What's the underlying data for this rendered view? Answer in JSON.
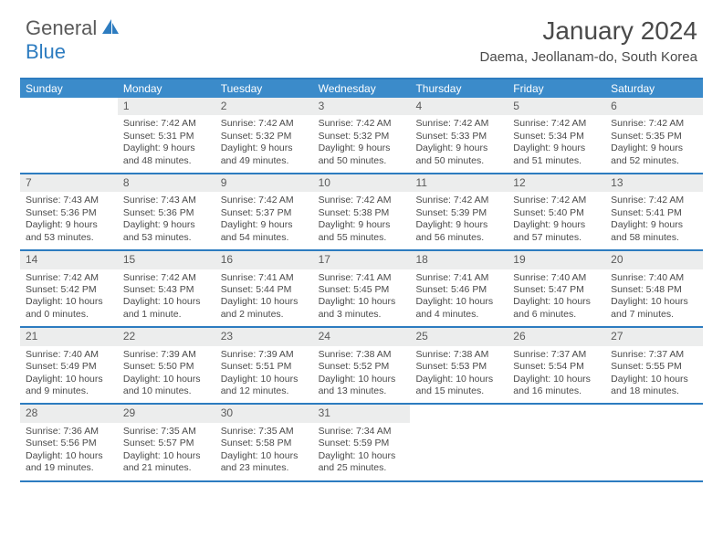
{
  "brand": {
    "part1": "General",
    "part2": "Blue"
  },
  "title": "January 2024",
  "location": "Daema, Jeollanam-do, South Korea",
  "colors": {
    "accent": "#2d7cc0",
    "header_bg": "#3b8bca",
    "header_fg": "#ffffff",
    "daynum_bg": "#eceded",
    "text": "#4a4a4a",
    "background": "#ffffff"
  },
  "daysOfWeek": [
    "Sunday",
    "Monday",
    "Tuesday",
    "Wednesday",
    "Thursday",
    "Friday",
    "Saturday"
  ],
  "labels": {
    "sunrise": "Sunrise:",
    "sunset": "Sunset:",
    "daylight": "Daylight:"
  },
  "weeks": [
    [
      null,
      {
        "n": "1",
        "sunrise": "7:42 AM",
        "sunset": "5:31 PM",
        "daylight": "9 hours and 48 minutes."
      },
      {
        "n": "2",
        "sunrise": "7:42 AM",
        "sunset": "5:32 PM",
        "daylight": "9 hours and 49 minutes."
      },
      {
        "n": "3",
        "sunrise": "7:42 AM",
        "sunset": "5:32 PM",
        "daylight": "9 hours and 50 minutes."
      },
      {
        "n": "4",
        "sunrise": "7:42 AM",
        "sunset": "5:33 PM",
        "daylight": "9 hours and 50 minutes."
      },
      {
        "n": "5",
        "sunrise": "7:42 AM",
        "sunset": "5:34 PM",
        "daylight": "9 hours and 51 minutes."
      },
      {
        "n": "6",
        "sunrise": "7:42 AM",
        "sunset": "5:35 PM",
        "daylight": "9 hours and 52 minutes."
      }
    ],
    [
      {
        "n": "7",
        "sunrise": "7:43 AM",
        "sunset": "5:36 PM",
        "daylight": "9 hours and 53 minutes."
      },
      {
        "n": "8",
        "sunrise": "7:43 AM",
        "sunset": "5:36 PM",
        "daylight": "9 hours and 53 minutes."
      },
      {
        "n": "9",
        "sunrise": "7:42 AM",
        "sunset": "5:37 PM",
        "daylight": "9 hours and 54 minutes."
      },
      {
        "n": "10",
        "sunrise": "7:42 AM",
        "sunset": "5:38 PM",
        "daylight": "9 hours and 55 minutes."
      },
      {
        "n": "11",
        "sunrise": "7:42 AM",
        "sunset": "5:39 PM",
        "daylight": "9 hours and 56 minutes."
      },
      {
        "n": "12",
        "sunrise": "7:42 AM",
        "sunset": "5:40 PM",
        "daylight": "9 hours and 57 minutes."
      },
      {
        "n": "13",
        "sunrise": "7:42 AM",
        "sunset": "5:41 PM",
        "daylight": "9 hours and 58 minutes."
      }
    ],
    [
      {
        "n": "14",
        "sunrise": "7:42 AM",
        "sunset": "5:42 PM",
        "daylight": "10 hours and 0 minutes."
      },
      {
        "n": "15",
        "sunrise": "7:42 AM",
        "sunset": "5:43 PM",
        "daylight": "10 hours and 1 minute."
      },
      {
        "n": "16",
        "sunrise": "7:41 AM",
        "sunset": "5:44 PM",
        "daylight": "10 hours and 2 minutes."
      },
      {
        "n": "17",
        "sunrise": "7:41 AM",
        "sunset": "5:45 PM",
        "daylight": "10 hours and 3 minutes."
      },
      {
        "n": "18",
        "sunrise": "7:41 AM",
        "sunset": "5:46 PM",
        "daylight": "10 hours and 4 minutes."
      },
      {
        "n": "19",
        "sunrise": "7:40 AM",
        "sunset": "5:47 PM",
        "daylight": "10 hours and 6 minutes."
      },
      {
        "n": "20",
        "sunrise": "7:40 AM",
        "sunset": "5:48 PM",
        "daylight": "10 hours and 7 minutes."
      }
    ],
    [
      {
        "n": "21",
        "sunrise": "7:40 AM",
        "sunset": "5:49 PM",
        "daylight": "10 hours and 9 minutes."
      },
      {
        "n": "22",
        "sunrise": "7:39 AM",
        "sunset": "5:50 PM",
        "daylight": "10 hours and 10 minutes."
      },
      {
        "n": "23",
        "sunrise": "7:39 AM",
        "sunset": "5:51 PM",
        "daylight": "10 hours and 12 minutes."
      },
      {
        "n": "24",
        "sunrise": "7:38 AM",
        "sunset": "5:52 PM",
        "daylight": "10 hours and 13 minutes."
      },
      {
        "n": "25",
        "sunrise": "7:38 AM",
        "sunset": "5:53 PM",
        "daylight": "10 hours and 15 minutes."
      },
      {
        "n": "26",
        "sunrise": "7:37 AM",
        "sunset": "5:54 PM",
        "daylight": "10 hours and 16 minutes."
      },
      {
        "n": "27",
        "sunrise": "7:37 AM",
        "sunset": "5:55 PM",
        "daylight": "10 hours and 18 minutes."
      }
    ],
    [
      {
        "n": "28",
        "sunrise": "7:36 AM",
        "sunset": "5:56 PM",
        "daylight": "10 hours and 19 minutes."
      },
      {
        "n": "29",
        "sunrise": "7:35 AM",
        "sunset": "5:57 PM",
        "daylight": "10 hours and 21 minutes."
      },
      {
        "n": "30",
        "sunrise": "7:35 AM",
        "sunset": "5:58 PM",
        "daylight": "10 hours and 23 minutes."
      },
      {
        "n": "31",
        "sunrise": "7:34 AM",
        "sunset": "5:59 PM",
        "daylight": "10 hours and 25 minutes."
      },
      null,
      null,
      null
    ]
  ]
}
